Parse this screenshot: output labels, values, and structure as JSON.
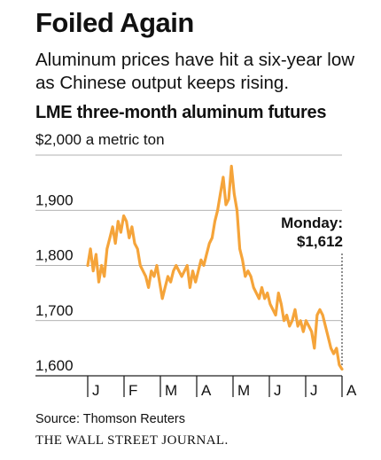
{
  "headline": "Foiled Again",
  "deck": "Aluminum prices have hit a six-year low as Chinese output keeps rising.",
  "source": "Source: Thomson Reuters",
  "credit": "THE WALL STREET JOURNAL.",
  "colors": {
    "line": "#f5a43a",
    "grid": "#999999",
    "text": "#111111"
  },
  "chart_data": {
    "type": "line",
    "title": "LME three-month aluminum futures",
    "unit_label": "$2,000 a metric ton",
    "ylim": [
      1600,
      2000
    ],
    "yticks": [
      {
        "label": "1,900",
        "value": 1900
      },
      {
        "label": "1,800",
        "value": 1800
      },
      {
        "label": "1,700",
        "value": 1700
      },
      {
        "label": "1,600",
        "value": 1600
      }
    ],
    "months": [
      "J",
      "F",
      "M",
      "A",
      "M",
      "J",
      "J",
      "A"
    ],
    "grid": true,
    "annotation": {
      "label": "Monday:",
      "value_label": "$1,612",
      "value": 1612
    },
    "series": [
      {
        "values": [
          1800,
          1830,
          1790,
          1820,
          1770,
          1800,
          1780,
          1830,
          1850,
          1870,
          1840,
          1880,
          1860,
          1890,
          1880,
          1850,
          1870,
          1840,
          1830,
          1800,
          1790,
          1780,
          1760,
          1790,
          1780,
          1800,
          1770,
          1740,
          1760,
          1780,
          1770,
          1790,
          1800,
          1790,
          1780,
          1790,
          1800,
          1760,
          1790,
          1770,
          1790,
          1810,
          1800,
          1820,
          1840,
          1850,
          1880,
          1900,
          1930,
          1960,
          1910,
          1920,
          1980,
          1930,
          1900,
          1830,
          1810,
          1780,
          1790,
          1780,
          1760,
          1750,
          1740,
          1760,
          1740,
          1750,
          1730,
          1720,
          1710,
          1750,
          1730,
          1700,
          1710,
          1690,
          1700,
          1720,
          1690,
          1700,
          1680,
          1700,
          1690,
          1680,
          1650,
          1710,
          1720,
          1710,
          1690,
          1670,
          1650,
          1640,
          1650,
          1620,
          1612
        ]
      }
    ]
  }
}
